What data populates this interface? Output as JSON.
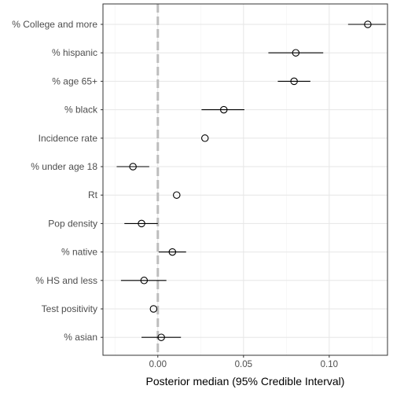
{
  "chart_data": {
    "type": "scatter",
    "subtype": "forest-plot",
    "title": "",
    "xlabel": "Posterior median (95% Credible Interval)",
    "ylabel": "",
    "xlim": [
      -0.032,
      0.134
    ],
    "xticks": [
      0.0,
      0.05,
      0.1
    ],
    "xtick_labels": [
      "0.00",
      "0.05",
      "0.10"
    ],
    "reference_line": {
      "x": 0.0,
      "style": "dashed",
      "color": "#bdbdbd"
    },
    "grid": true,
    "categories": [
      "% College and more",
      "% hispanic",
      "% age 65+",
      "% black",
      "Incidence rate",
      "% under age 18",
      "Rt",
      "Pop density",
      "% native",
      "% HS and less",
      "Test positivity",
      "% asian"
    ],
    "medians": [
      0.1225,
      0.0805,
      0.0795,
      0.0385,
      0.0275,
      -0.0145,
      0.011,
      -0.0095,
      0.0085,
      -0.008,
      -0.0025,
      0.002
    ],
    "lower": [
      0.111,
      0.0645,
      0.07,
      0.0255,
      0.0275,
      -0.024,
      0.011,
      -0.0195,
      0.0005,
      -0.0215,
      -0.0025,
      -0.0095
    ],
    "upper": [
      0.133,
      0.0965,
      0.089,
      0.0505,
      0.0275,
      -0.005,
      0.011,
      0.0,
      0.0165,
      0.005,
      -0.0025,
      0.0135
    ]
  }
}
